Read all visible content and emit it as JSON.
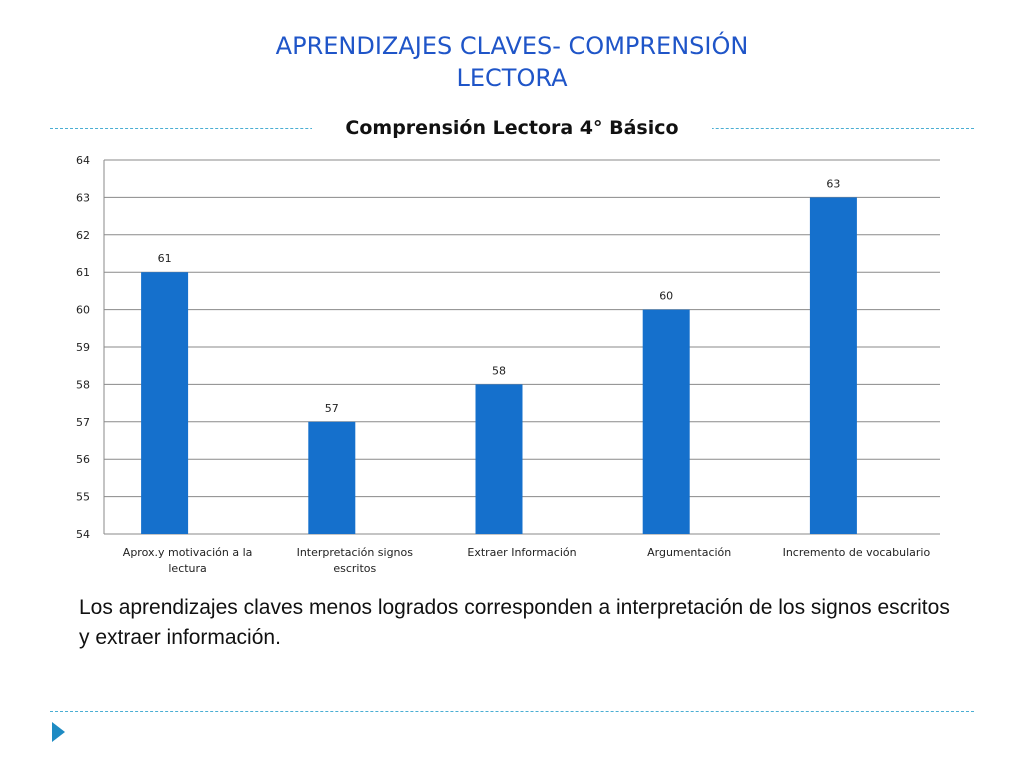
{
  "slide": {
    "title_lines": [
      "APRENDIZAJES  CLAVES- COMPRENSIÓN",
      "LECTORA"
    ],
    "caption": "Los aprendizajes claves menos logrados corresponden a interpretación de los signos escritos y extraer información."
  },
  "colors": {
    "title": "#1f55c8",
    "bar": "#1570cc",
    "rule": "#4aaed3",
    "nav_arrow": "#1e8bc3"
  },
  "icons": {
    "nav": "next-slide-arrow-icon"
  },
  "chart_data": {
    "type": "bar",
    "title": "Comprensión Lectora 4° Básico",
    "categories": [
      [
        "Aprox.y motivación a la",
        "lectura"
      ],
      [
        "Interpretación signos",
        "escritos"
      ],
      [
        "Extraer Información"
      ],
      [
        "Argumentación"
      ],
      [
        "Incremento de vocabulario"
      ]
    ],
    "values": [
      61,
      57,
      58,
      60,
      63
    ],
    "data_labels": [
      "61",
      "57",
      "58",
      "60",
      "63"
    ],
    "ylim": [
      54,
      64
    ],
    "yticks": [
      54,
      55,
      56,
      57,
      58,
      59,
      60,
      61,
      62,
      63,
      64
    ],
    "grid": true,
    "legend": "none"
  }
}
